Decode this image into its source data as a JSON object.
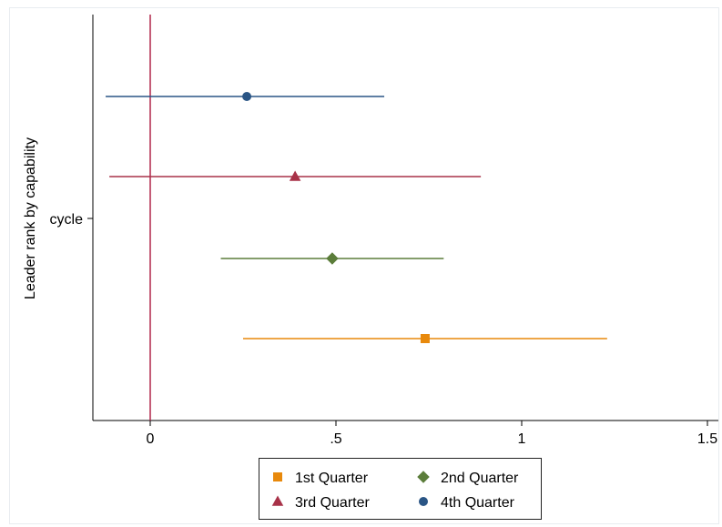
{
  "chart_data": {
    "type": "scatter",
    "subtype": "coefficient-plot",
    "title": "",
    "xlabel": "",
    "ylabel": "Leader rank by capability",
    "xlim": [
      -0.16,
      1.51
    ],
    "x_ticks": [
      0,
      0.5,
      1,
      1.5
    ],
    "x_tick_labels": [
      "0",
      ".5",
      "1",
      "1.5"
    ],
    "y_category_label": "cycle",
    "reference_line": {
      "x": 0,
      "color": "#b0274a"
    },
    "grid": false,
    "legend_position": "bottom",
    "series": [
      {
        "name": "1st Quarter",
        "estimate": 0.74,
        "ci_low": 0.25,
        "ci_high": 1.23,
        "color": "#e8890c",
        "marker": "square"
      },
      {
        "name": "2nd Quarter",
        "estimate": 0.49,
        "ci_low": 0.19,
        "ci_high": 0.79,
        "color": "#5b7d3a",
        "marker": "diamond"
      },
      {
        "name": "3rd Quarter",
        "estimate": 0.39,
        "ci_low": -0.11,
        "ci_high": 0.89,
        "color": "#a83248",
        "marker": "triangle"
      },
      {
        "name": "4th Quarter",
        "estimate": 0.26,
        "ci_low": -0.12,
        "ci_high": 0.63,
        "color": "#2a5585",
        "marker": "circle"
      }
    ]
  }
}
